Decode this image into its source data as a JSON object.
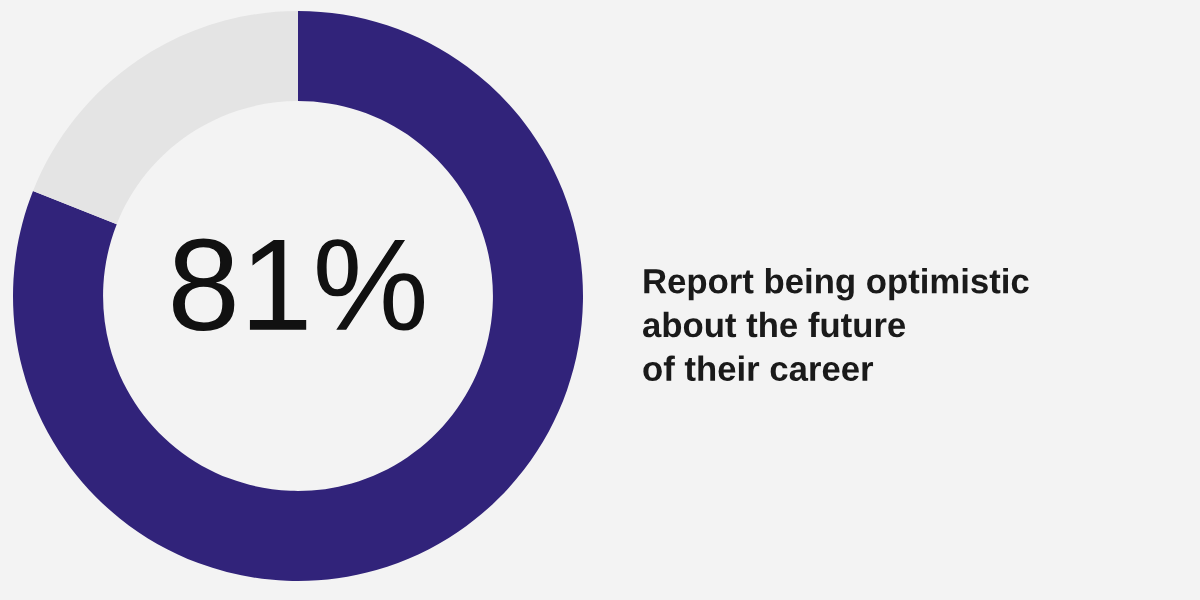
{
  "chart_data": {
    "type": "donut",
    "categories": [
      null,
      null
    ],
    "values": [
      81,
      19
    ],
    "colors": [
      "#31237a",
      "#e4e4e4"
    ],
    "value_labels": [
      "81%",
      null
    ],
    "annotations": [
      "Report being optimistic\nabout the future\nof their career"
    ],
    "legend": false
  }
}
